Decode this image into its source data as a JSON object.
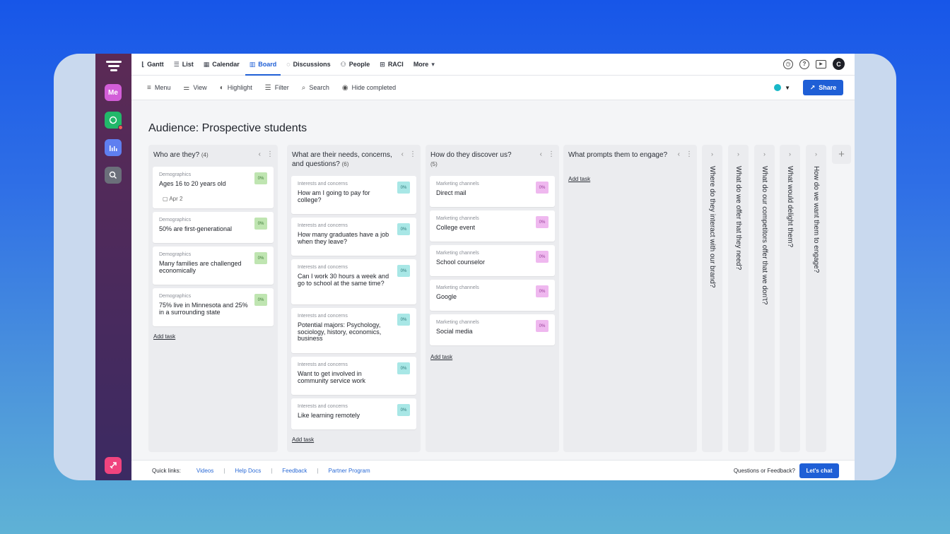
{
  "nav": {
    "tabs": [
      {
        "label": "Gantt",
        "icon": "gantt-icon",
        "glyph": "⌊"
      },
      {
        "label": "List",
        "icon": "list-icon",
        "glyph": "☰"
      },
      {
        "label": "Calendar",
        "icon": "calendar-icon",
        "glyph": "▦"
      },
      {
        "label": "Board",
        "icon": "board-icon",
        "glyph": "▥"
      },
      {
        "label": "Discussions",
        "icon": "discussions-icon",
        "glyph": "◌"
      },
      {
        "label": "People",
        "icon": "people-icon",
        "glyph": "⚇"
      },
      {
        "label": "RACI",
        "icon": "raci-icon",
        "glyph": "⊞"
      },
      {
        "label": "More",
        "icon": "chevron-down-icon",
        "glyph": "▾"
      }
    ],
    "active_tab": "Board",
    "avatar_letter": "C"
  },
  "sidebar": {
    "me_label": "Me"
  },
  "toolbar": {
    "menu": "Menu",
    "view": "View",
    "highlight": "Highlight",
    "filter": "Filter",
    "search": "Search",
    "hide_completed": "Hide completed",
    "share": "Share",
    "color_accent": "#19b8c8"
  },
  "board": {
    "title": "Audience: Prospective students",
    "add_task": "Add task",
    "columns": [
      {
        "title": "Who are they?",
        "count": "(4)",
        "cards": [
          {
            "category": "Demographics",
            "title": "Ages 16 to 20 years old",
            "pct": "0%",
            "date": "Apr 2"
          },
          {
            "category": "Demographics",
            "title": "50% are first-generational",
            "pct": "0%"
          },
          {
            "category": "Demographics",
            "title": "Many families are challenged economically",
            "pct": "0%"
          },
          {
            "category": "Demographics",
            "title": "75% live in Minnesota and 25% in a surrounding state",
            "pct": "0%"
          }
        ]
      },
      {
        "title": "What are their needs, concerns, and questions?",
        "count": "(6)",
        "cards": [
          {
            "category": "Interests and concerns",
            "title": "How am I going to pay for college?",
            "pct": "0%"
          },
          {
            "category": "Interests and concerns",
            "title": "How many graduates have a job when they leave?",
            "pct": "0%"
          },
          {
            "category": "Interests and concerns",
            "title": "Can I work 30 hours a week and go to school at the same time?",
            "pct": "0%"
          },
          {
            "category": "Interests and concerns",
            "title": "Potential majors: Psychology, sociology, history, economics, business",
            "pct": "0%"
          },
          {
            "category": "Interests and concerns",
            "title": "Want to get involved in community service work",
            "pct": "0%"
          },
          {
            "category": "Interests and concerns",
            "title": "Like learning remotely",
            "pct": "0%"
          }
        ]
      },
      {
        "title": "How do they discover us?",
        "count": "(5)",
        "cards": [
          {
            "category": "Marketing channels",
            "title": "Direct mail",
            "pct": "0%"
          },
          {
            "category": "Marketing channels",
            "title": "College event",
            "pct": "0%"
          },
          {
            "category": "Marketing channels",
            "title": "School counselor",
            "pct": "0%"
          },
          {
            "category": "Marketing channels",
            "title": "Google",
            "pct": "0%"
          },
          {
            "category": "Marketing channels",
            "title": "Social media",
            "pct": "0%"
          }
        ]
      },
      {
        "title": "What prompts them to engage?",
        "count": "",
        "cards": []
      }
    ],
    "collapsed_columns": [
      "Where do they interact with our brand?",
      "What do we offer that they need?",
      "What do our competitors offer that we don't?",
      "What would delight them?",
      "How do we want them to engage?"
    ]
  },
  "footer": {
    "quick_links_label": "Quick links:",
    "links": [
      "Videos",
      "Help Docs",
      "Feedback",
      "Partner Program"
    ],
    "question": "Questions or Feedback?",
    "chat": "Let's chat"
  }
}
